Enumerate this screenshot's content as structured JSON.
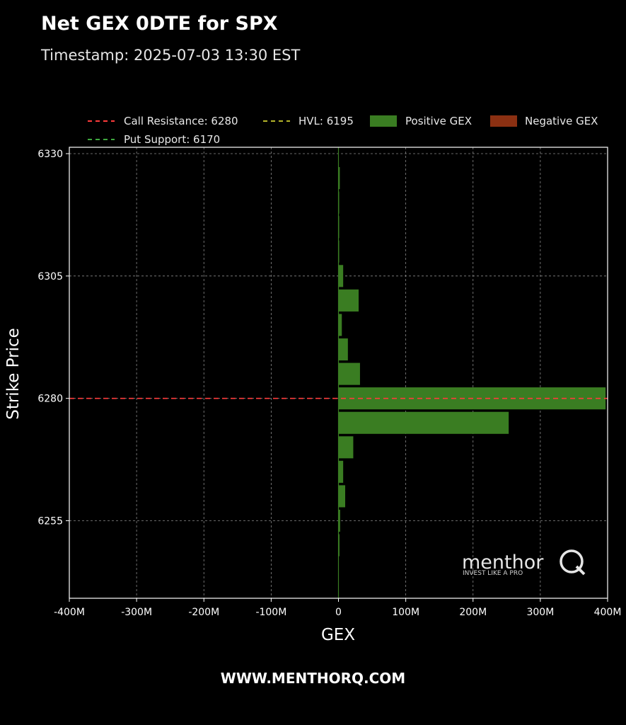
{
  "header": {
    "title": "Net GEX 0DTE for SPX",
    "subtitle": "Timestamp: 2025-07-03 13:30 EST"
  },
  "footer": {
    "text": "WWW.MENTHORQ.COM"
  },
  "logo": {
    "word": "menthor",
    "letter": "Q",
    "tagline": "INVEST LIKE A PRO"
  },
  "colors": {
    "positive": "#3a7d22",
    "negative": "#8b3012",
    "call_resistance": "#ff3b3b",
    "hvl": "#b5b52a",
    "put_support": "#3fa83f",
    "grid": "#8a8a8a",
    "axes": "#ffffff"
  },
  "chart_data": {
    "type": "bar",
    "orientation": "horizontal",
    "title": "Net GEX 0DTE for SPX",
    "subtitle": "Timestamp: 2025-07-03 13:30 EST",
    "xlabel": "GEX",
    "ylabel": "Strike Price",
    "xlim": [
      -400000000,
      400000000
    ],
    "ylim": [
      6245,
      6330
    ],
    "xticks": [
      -400000000,
      -300000000,
      -200000000,
      -100000000,
      0,
      100000000,
      200000000,
      300000000,
      400000000
    ],
    "xtick_labels": [
      "-400M",
      "-300M",
      "-200M",
      "-100M",
      "0",
      "100M",
      "200M",
      "300M",
      "400M"
    ],
    "yticks": [
      6255,
      6280,
      6305,
      6330
    ],
    "ytick_labels": [
      "6255",
      "6280",
      "6305",
      "6330"
    ],
    "grid": true,
    "legend_position": "top",
    "bar_height_strike": 4.5,
    "series": [
      {
        "name": "Positive GEX",
        "strikes": [
          6250,
          6255,
          6260,
          6265,
          6270,
          6275,
          6280,
          6285,
          6290,
          6295,
          6300,
          6305,
          6310,
          6315,
          6320,
          6325
        ],
        "values": [
          1500000,
          2500000,
          10000000,
          7000000,
          22000000,
          253000000,
          397000000,
          32000000,
          14000000,
          5000000,
          30000000,
          7000000,
          500000,
          500000,
          500000,
          2000000
        ]
      },
      {
        "name": "Negative GEX",
        "strikes": [],
        "values": []
      }
    ],
    "reference_lines": [
      {
        "name": "Call Resistance: 6280",
        "value": 6280,
        "color": "#ff3b3b"
      },
      {
        "name": "HVL: 6195",
        "value": 6195,
        "color": "#b5b52a"
      },
      {
        "name": "Put Support: 6170",
        "value": 6170,
        "color": "#3fa83f"
      }
    ]
  }
}
